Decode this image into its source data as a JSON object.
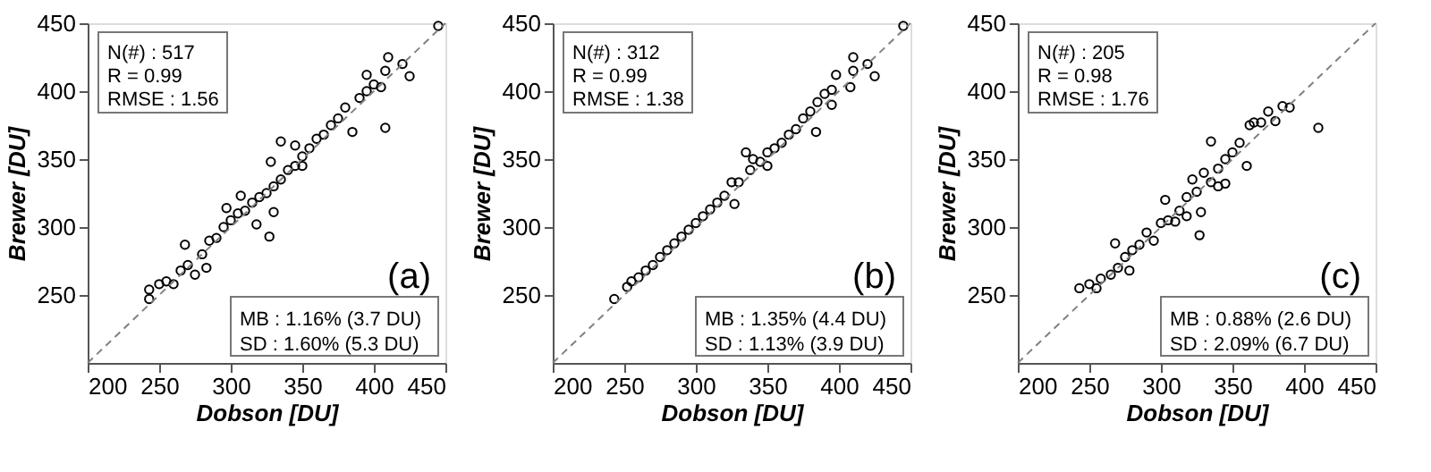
{
  "chart_data": [
    {
      "type": "scatter",
      "xlabel": "Dobson [DU]",
      "ylabel": "Brewer [DU]",
      "xlim": [
        200,
        450
      ],
      "ylim": [
        200,
        450
      ],
      "xticks": [
        200,
        250,
        300,
        350,
        400,
        450
      ],
      "yticks": [
        250,
        300,
        350,
        400,
        450
      ],
      "grid": false,
      "marker": "circle",
      "annotations": [
        "N(#) : 517",
        "R = 0.99",
        "RMSE : 1.56",
        "(a)",
        "MB : 1.16% (3.7 DU)",
        "SD  : 1.60% (5.3 DU)"
      ],
      "series": [
        {
          "color": "#000000",
          "x": [
            243,
            243,
            250,
            255,
            260,
            265,
            270,
            275,
            268,
            280,
            285,
            290,
            295,
            300,
            305,
            310,
            315,
            320,
            325,
            327,
            330,
            335,
            340,
            345,
            350,
            355,
            360,
            365,
            370,
            375,
            380,
            385,
            390,
            395,
            400,
            408,
            408,
            410,
            420,
            425,
            445,
            318,
            330,
            335,
            328,
            345,
            350,
            297,
            283,
            307,
            395,
            405
          ],
          "values": [
            247,
            254,
            258,
            260,
            258,
            268,
            272,
            265,
            287,
            280,
            290,
            292,
            300,
            305,
            310,
            312,
            318,
            322,
            325,
            293,
            330,
            335,
            342,
            345,
            352,
            358,
            365,
            368,
            375,
            380,
            388,
            370,
            395,
            400,
            405,
            415,
            373,
            425,
            420,
            411,
            448,
            302,
            311,
            363,
            348,
            360,
            345,
            314,
            270,
            323,
            412,
            403
          ]
        },
        {
          "type": "line",
          "color": "#808080",
          "line_style": "dashed",
          "marker": "none",
          "x": [
            200,
            450
          ],
          "values": [
            200,
            450
          ]
        }
      ]
    },
    {
      "type": "scatter",
      "xlabel": "Dobson [DU]",
      "ylabel": "Brewer [DU]",
      "xlim": [
        200,
        450
      ],
      "ylim": [
        200,
        450
      ],
      "xticks": [
        200,
        250,
        300,
        350,
        400,
        450
      ],
      "yticks": [
        250,
        300,
        350,
        400,
        450
      ],
      "grid": false,
      "marker": "circle",
      "annotations": [
        "N(#) : 312",
        "R = 0.99",
        "RMSE : 1.38",
        "(b)",
        "MB : 1.35% (4.4 DU)",
        "SD  : 1.13% (3.9 DU)"
      ],
      "series": [
        {
          "color": "#000000",
          "x": [
            243,
            252,
            255,
            260,
            265,
            270,
            275,
            280,
            285,
            290,
            295,
            300,
            305,
            310,
            315,
            320,
            325,
            327,
            330,
            338,
            340,
            345,
            350,
            355,
            360,
            365,
            370,
            375,
            380,
            384,
            385,
            390,
            395,
            398,
            408,
            410,
            410,
            420,
            425,
            445,
            350,
            335,
            395
          ],
          "values": [
            247,
            256,
            260,
            263,
            268,
            272,
            278,
            283,
            288,
            293,
            298,
            303,
            308,
            313,
            318,
            323,
            333,
            317,
            333,
            342,
            350,
            348,
            355,
            358,
            362,
            368,
            372,
            380,
            385,
            370,
            392,
            398,
            401,
            412,
            403,
            415,
            425,
            420,
            411,
            448,
            345,
            355,
            390
          ]
        },
        {
          "type": "line",
          "color": "#808080",
          "line_style": "dashed",
          "marker": "none",
          "x": [
            200,
            450
          ],
          "values": [
            200,
            450
          ]
        }
      ]
    },
    {
      "type": "scatter",
      "xlabel": "Dobson [DU]",
      "ylabel": "Brewer [DU]",
      "xlim": [
        200,
        450
      ],
      "ylim": [
        200,
        450
      ],
      "xticks": [
        200,
        250,
        300,
        350,
        400,
        450
      ],
      "yticks": [
        250,
        300,
        350,
        400,
        450
      ],
      "grid": false,
      "marker": "circle",
      "annotations": [
        "N(#) : 205",
        "R = 0.98",
        "RMSE : 1.76",
        "(c)",
        "MB : 0.88% (2.6 DU)",
        "SD  : 2.09% (6.7 DU)"
      ],
      "series": [
        {
          "color": "#000000",
          "x": [
            243,
            250,
            255,
            258,
            265,
            268,
            270,
            275,
            278,
            280,
            285,
            290,
            295,
            300,
            303,
            305,
            310,
            313,
            318,
            322,
            325,
            327,
            328,
            330,
            335,
            335,
            340,
            345,
            340,
            350,
            355,
            360,
            362,
            365,
            370,
            375,
            380,
            385,
            390,
            410,
            318,
            345
          ],
          "values": [
            255,
            258,
            255,
            262,
            265,
            288,
            270,
            278,
            268,
            283,
            287,
            296,
            290,
            303,
            320,
            305,
            304,
            312,
            322,
            335,
            326,
            294,
            311,
            340,
            363,
            333,
            343,
            350,
            330,
            355,
            362,
            345,
            375,
            377,
            377,
            385,
            378,
            389,
            388,
            373,
            308,
            332
          ]
        },
        {
          "type": "line",
          "color": "#808080",
          "line_style": "dashed",
          "marker": "none",
          "x": [
            200,
            450
          ],
          "values": [
            200,
            450
          ]
        }
      ]
    }
  ]
}
